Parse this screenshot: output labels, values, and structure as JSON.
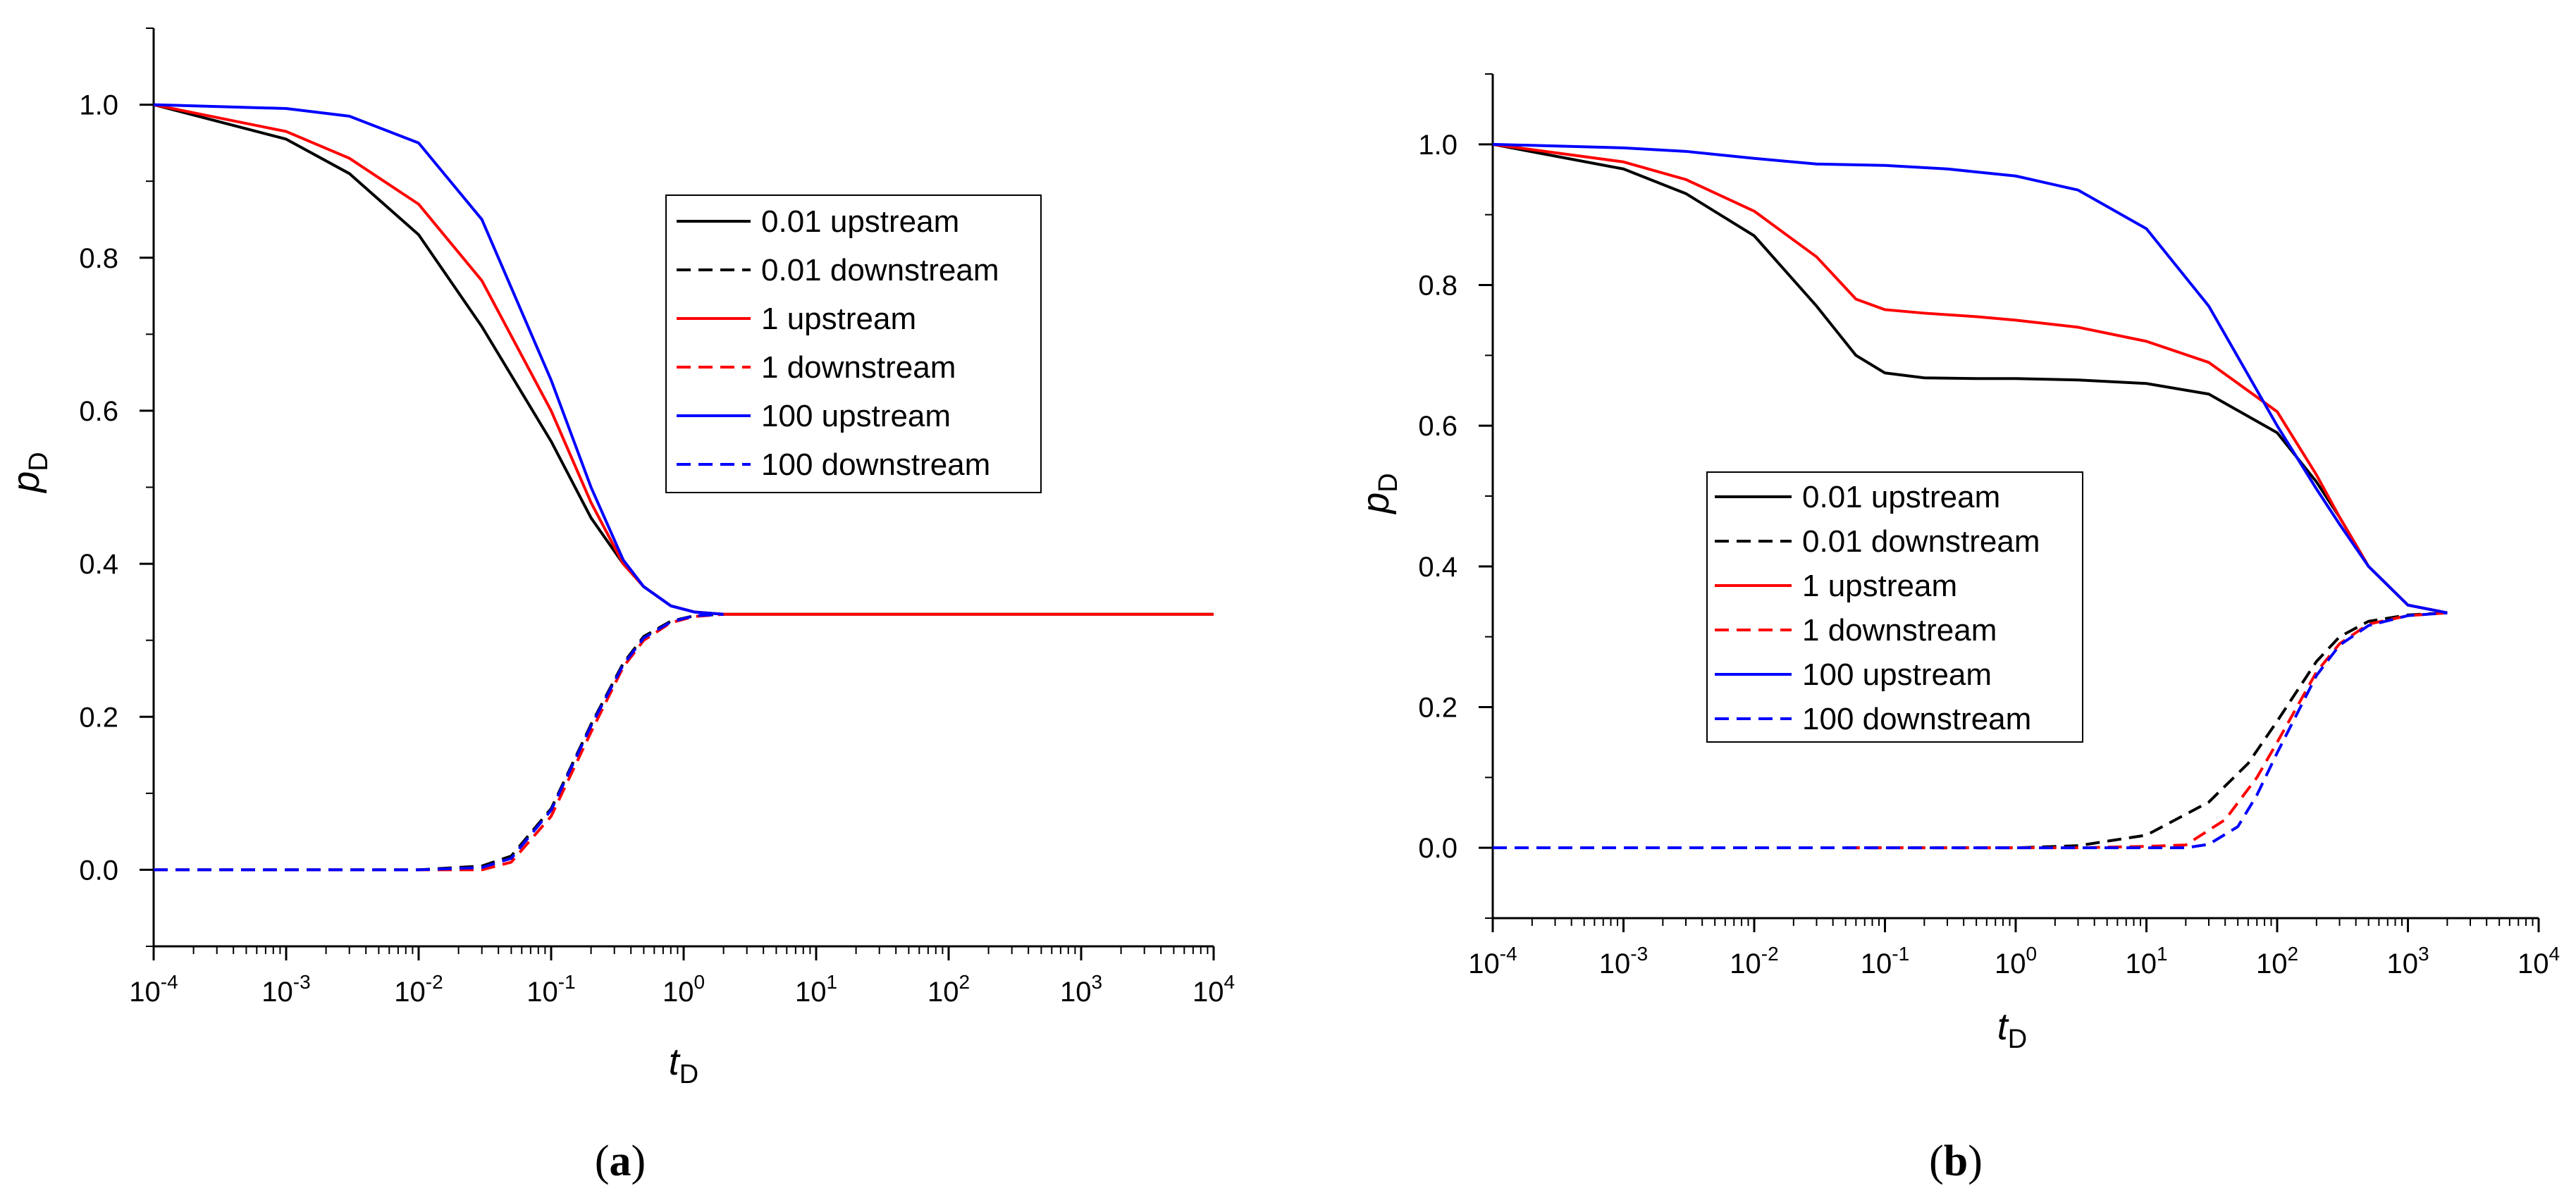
{
  "figure": {
    "panel_a_label_open": "(",
    "panel_a_label_letter": "a",
    "panel_a_label_close": ")",
    "panel_b_label_open": "(",
    "panel_b_label_letter": "b",
    "panel_b_label_close": ")"
  },
  "chart_data": [
    {
      "id": "a",
      "type": "line",
      "xscale": "log",
      "xlim": [
        0.0001,
        10000
      ],
      "ylim": [
        -0.1,
        1.1
      ],
      "x_ticks": [
        {
          "value": 0.0001,
          "base": "10",
          "exp": "-4"
        },
        {
          "value": 0.001,
          "base": "10",
          "exp": "-3"
        },
        {
          "value": 0.01,
          "base": "10",
          "exp": "-2"
        },
        {
          "value": 0.1,
          "base": "10",
          "exp": "-1"
        },
        {
          "value": 1,
          "base": "10",
          "exp": "0"
        },
        {
          "value": 10,
          "base": "10",
          "exp": "1"
        },
        {
          "value": 100,
          "base": "10",
          "exp": "2"
        },
        {
          "value": 1000,
          "base": "10",
          "exp": "3"
        },
        {
          "value": 10000,
          "base": "10",
          "exp": "4"
        }
      ],
      "y_ticks": [
        {
          "value": 0.0,
          "label": "0.0"
        },
        {
          "value": 0.2,
          "label": "0.2"
        },
        {
          "value": 0.4,
          "label": "0.4"
        },
        {
          "value": 0.6,
          "label": "0.6"
        },
        {
          "value": 0.8,
          "label": "0.8"
        },
        {
          "value": 1.0,
          "label": "1.0"
        }
      ],
      "xlabel": "t",
      "xlabel_sub": "D",
      "ylabel": "p",
      "ylabel_sub": "D",
      "legend_position": "upper-center",
      "series": [
        {
          "name": "0.01 upstream",
          "color": "#000000",
          "style": "solid",
          "x": [
            0.0001,
            0.001,
            0.003,
            0.01,
            0.03,
            0.1,
            0.2,
            0.35,
            0.5,
            0.8,
            1.2,
            2,
            10000
          ],
          "y": [
            1.0,
            0.955,
            0.91,
            0.83,
            0.71,
            0.56,
            0.46,
            0.4,
            0.37,
            0.345,
            0.337,
            0.334,
            0.334
          ]
        },
        {
          "name": "0.01 downstream",
          "color": "#000000",
          "style": "dashed",
          "x": [
            0.0001,
            0.01,
            0.03,
            0.05,
            0.1,
            0.2,
            0.35,
            0.5,
            0.8,
            1.2,
            2
          ],
          "y": [
            0.0,
            0.0,
            0.005,
            0.018,
            0.08,
            0.19,
            0.27,
            0.305,
            0.325,
            0.332,
            0.334
          ]
        },
        {
          "name": "1 upstream",
          "color": "#ff0000",
          "style": "solid",
          "x": [
            0.0001,
            0.001,
            0.003,
            0.01,
            0.03,
            0.1,
            0.2,
            0.35,
            0.5,
            0.8,
            1.2,
            2,
            10000
          ],
          "y": [
            1.0,
            0.965,
            0.93,
            0.87,
            0.77,
            0.6,
            0.48,
            0.4,
            0.37,
            0.345,
            0.337,
            0.334,
            0.334
          ]
        },
        {
          "name": "1 downstream",
          "color": "#ff0000",
          "style": "dashed",
          "x": [
            0.0001,
            0.01,
            0.03,
            0.05,
            0.1,
            0.2,
            0.35,
            0.5,
            0.8,
            1.2,
            2
          ],
          "y": [
            0.0,
            0.0,
            0.0,
            0.01,
            0.07,
            0.18,
            0.265,
            0.3,
            0.323,
            0.331,
            0.334
          ]
        },
        {
          "name": "100 upstream",
          "color": "#0000ff",
          "style": "solid",
          "x": [
            0.0001,
            0.001,
            0.003,
            0.01,
            0.03,
            0.1,
            0.2,
            0.35,
            0.5,
            0.8,
            1.2,
            2
          ],
          "y": [
            1.0,
            0.995,
            0.985,
            0.95,
            0.85,
            0.64,
            0.5,
            0.405,
            0.37,
            0.345,
            0.337,
            0.334
          ]
        },
        {
          "name": "100 downstream",
          "color": "#0000ff",
          "style": "dashed",
          "x": [
            0.0001,
            0.01,
            0.03,
            0.05,
            0.1,
            0.2,
            0.35,
            0.5,
            0.8,
            1.2,
            2
          ],
          "y": [
            0.0,
            0.0,
            0.003,
            0.015,
            0.078,
            0.188,
            0.268,
            0.303,
            0.324,
            0.332,
            0.334
          ]
        }
      ]
    },
    {
      "id": "b",
      "type": "line",
      "xscale": "log",
      "xlim": [
        0.0001,
        10000
      ],
      "ylim": [
        -0.1,
        1.1
      ],
      "x_ticks": [
        {
          "value": 0.0001,
          "base": "10",
          "exp": "-4"
        },
        {
          "value": 0.001,
          "base": "10",
          "exp": "-3"
        },
        {
          "value": 0.01,
          "base": "10",
          "exp": "-2"
        },
        {
          "value": 0.1,
          "base": "10",
          "exp": "-1"
        },
        {
          "value": 1,
          "base": "10",
          "exp": "0"
        },
        {
          "value": 10,
          "base": "10",
          "exp": "1"
        },
        {
          "value": 100,
          "base": "10",
          "exp": "2"
        },
        {
          "value": 1000,
          "base": "10",
          "exp": "3"
        },
        {
          "value": 10000,
          "base": "10",
          "exp": "4"
        }
      ],
      "y_ticks": [
        {
          "value": 0.0,
          "label": "0.0"
        },
        {
          "value": 0.2,
          "label": "0.2"
        },
        {
          "value": 0.4,
          "label": "0.4"
        },
        {
          "value": 0.6,
          "label": "0.6"
        },
        {
          "value": 0.8,
          "label": "0.8"
        },
        {
          "value": 1.0,
          "label": "1.0"
        }
      ],
      "xlabel": "t",
      "xlabel_sub": "D",
      "ylabel": "p",
      "ylabel_sub": "D",
      "legend_position": "center-left",
      "series": [
        {
          "name": "0.01 upstream",
          "color": "#000000",
          "style": "solid",
          "x": [
            0.0001,
            0.001,
            0.003,
            0.01,
            0.03,
            0.06,
            0.1,
            0.2,
            0.5,
            1,
            3,
            10,
            30,
            100,
            200,
            300,
            500,
            1000,
            2000
          ],
          "y": [
            1.0,
            0.965,
            0.93,
            0.87,
            0.77,
            0.7,
            0.675,
            0.668,
            0.667,
            0.667,
            0.665,
            0.66,
            0.645,
            0.59,
            0.52,
            0.47,
            0.4,
            0.345,
            0.334
          ]
        },
        {
          "name": "0.01 downstream",
          "color": "#000000",
          "style": "dashed",
          "x": [
            0.05,
            1,
            3,
            10,
            30,
            60,
            100,
            200,
            300,
            500,
            1000,
            2000
          ],
          "y": [
            0.0,
            0.0,
            0.003,
            0.018,
            0.065,
            0.12,
            0.18,
            0.265,
            0.3,
            0.322,
            0.331,
            0.334
          ]
        },
        {
          "name": "1 upstream",
          "color": "#ff0000",
          "style": "solid",
          "x": [
            0.0001,
            0.001,
            0.003,
            0.01,
            0.03,
            0.06,
            0.1,
            0.2,
            0.5,
            1,
            3,
            10,
            30,
            100,
            200,
            300,
            500,
            1000,
            2000
          ],
          "y": [
            1.0,
            0.975,
            0.95,
            0.905,
            0.84,
            0.78,
            0.765,
            0.76,
            0.755,
            0.75,
            0.74,
            0.72,
            0.69,
            0.62,
            0.53,
            0.47,
            0.4,
            0.345,
            0.334
          ]
        },
        {
          "name": "1 downstream",
          "color": "#ff0000",
          "style": "dashed",
          "x": [
            0.05,
            3,
            10,
            20,
            40,
            70,
            100,
            200,
            300,
            500,
            1000,
            2000
          ],
          "y": [
            0.0,
            0.0,
            0.002,
            0.004,
            0.04,
            0.1,
            0.15,
            0.25,
            0.29,
            0.318,
            0.33,
            0.334
          ]
        },
        {
          "name": "100 upstream",
          "color": "#0000ff",
          "style": "solid",
          "x": [
            0.0001,
            0.001,
            0.003,
            0.01,
            0.03,
            0.1,
            0.3,
            1,
            3,
            10,
            30,
            100,
            200,
            300,
            500,
            1000,
            2000
          ],
          "y": [
            1.0,
            0.995,
            0.99,
            0.98,
            0.972,
            0.97,
            0.965,
            0.955,
            0.935,
            0.88,
            0.77,
            0.6,
            0.51,
            0.46,
            0.4,
            0.345,
            0.334
          ]
        },
        {
          "name": "100 downstream",
          "color": "#0000ff",
          "style": "dashed",
          "x": [
            0.0001,
            10,
            20,
            30,
            50,
            70,
            100,
            200,
            300,
            500,
            1000,
            2000
          ],
          "y": [
            0.0,
            0.0,
            0.0,
            0.005,
            0.03,
            0.075,
            0.135,
            0.245,
            0.288,
            0.316,
            0.33,
            0.334
          ]
        }
      ]
    }
  ]
}
